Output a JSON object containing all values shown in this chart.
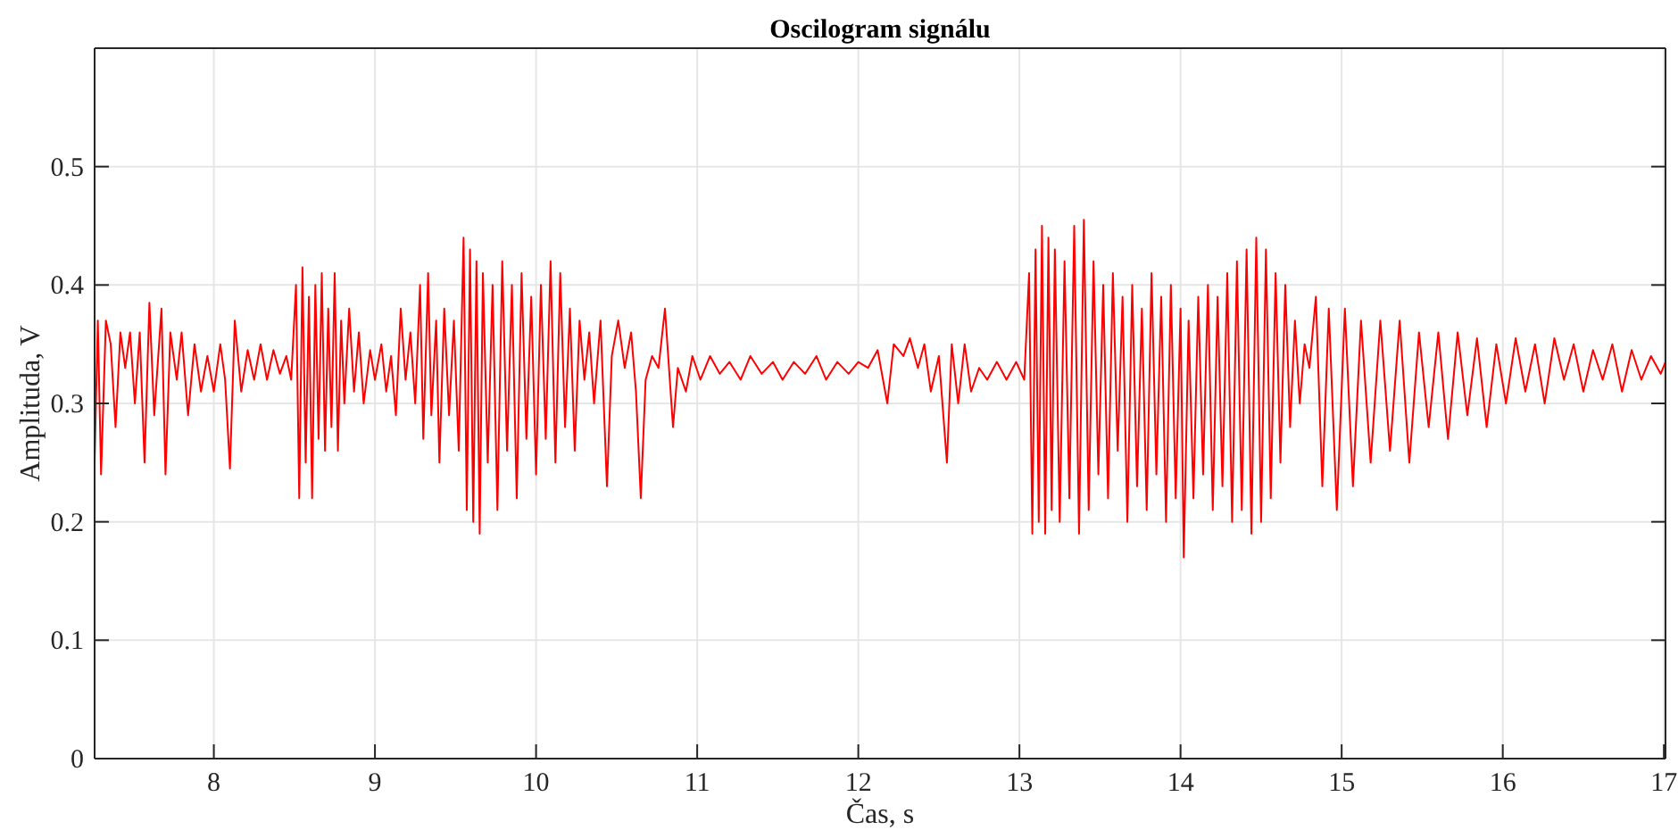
{
  "chart_data": {
    "type": "line",
    "title": "Oscilogram signálu",
    "xlabel": "Čas, s",
    "ylabel": "Amplituda, V",
    "xlim": [
      7.26,
      17.01
    ],
    "xticks": [
      8,
      9,
      10,
      11,
      12,
      13,
      14,
      15,
      16,
      17
    ],
    "ylim": [
      0,
      0.6
    ],
    "yticks": [
      0,
      0.1,
      0.2,
      0.3,
      0.4,
      0.5
    ],
    "grid": true,
    "series": [
      {
        "color": "#ff0000",
        "x": [
          7.26,
          7.28,
          7.3,
          7.33,
          7.36,
          7.39,
          7.42,
          7.45,
          7.48,
          7.51,
          7.54,
          7.57,
          7.6,
          7.63,
          7.675,
          7.7,
          7.73,
          7.77,
          7.8,
          7.84,
          7.88,
          7.92,
          7.96,
          8.0,
          8.04,
          8.07,
          8.1,
          8.13,
          8.17,
          8.21,
          8.25,
          8.29,
          8.33,
          8.37,
          8.41,
          8.45,
          8.48,
          8.51,
          8.53,
          8.55,
          8.57,
          8.59,
          8.61,
          8.63,
          8.65,
          8.67,
          8.69,
          8.71,
          8.73,
          8.75,
          8.77,
          8.79,
          8.81,
          8.84,
          8.87,
          8.9,
          8.93,
          8.97,
          9.0,
          9.04,
          9.07,
          9.1,
          9.13,
          9.16,
          9.19,
          9.22,
          9.25,
          9.28,
          9.3,
          9.33,
          9.35,
          9.38,
          9.4,
          9.43,
          9.46,
          9.49,
          9.52,
          9.55,
          9.57,
          9.59,
          9.61,
          9.63,
          9.65,
          9.67,
          9.7,
          9.73,
          9.76,
          9.79,
          9.82,
          9.85,
          9.88,
          9.91,
          9.94,
          9.97,
          10.0,
          10.03,
          10.06,
          10.09,
          10.12,
          10.15,
          10.18,
          10.21,
          10.24,
          10.27,
          10.3,
          10.33,
          10.36,
          10.4,
          10.44,
          10.47,
          10.51,
          10.55,
          10.59,
          10.62,
          10.65,
          10.68,
          10.72,
          10.76,
          10.8,
          10.85,
          10.88,
          10.93,
          10.97,
          11.02,
          11.08,
          11.14,
          11.2,
          11.27,
          11.33,
          11.4,
          11.47,
          11.53,
          11.6,
          11.67,
          11.74,
          11.8,
          11.87,
          11.94,
          12.0,
          12.06,
          12.12,
          12.18,
          12.22,
          12.28,
          12.32,
          12.37,
          12.41,
          12.45,
          12.5,
          12.55,
          12.58,
          12.62,
          12.66,
          12.7,
          12.75,
          12.8,
          12.86,
          12.92,
          12.98,
          13.03,
          13.06,
          13.08,
          13.1,
          13.12,
          13.14,
          13.16,
          13.18,
          13.2,
          13.22,
          13.25,
          13.28,
          13.31,
          13.34,
          13.37,
          13.4,
          13.43,
          13.46,
          13.49,
          13.52,
          13.55,
          13.58,
          13.61,
          13.64,
          13.67,
          13.7,
          13.73,
          13.76,
          13.79,
          13.82,
          13.85,
          13.88,
          13.91,
          13.94,
          13.97,
          14.0,
          14.02,
          14.05,
          14.08,
          14.11,
          14.14,
          14.17,
          14.2,
          14.23,
          14.26,
          14.29,
          14.32,
          14.35,
          14.38,
          14.41,
          14.44,
          14.47,
          14.5,
          14.53,
          14.56,
          14.59,
          14.62,
          14.65,
          14.68,
          14.71,
          14.74,
          14.77,
          14.8,
          14.84,
          14.88,
          14.92,
          14.97,
          15.02,
          15.07,
          15.12,
          15.18,
          15.24,
          15.3,
          15.36,
          15.42,
          15.48,
          15.54,
          15.6,
          15.66,
          15.72,
          15.78,
          15.84,
          15.9,
          15.96,
          16.02,
          16.08,
          16.14,
          16.2,
          16.26,
          16.32,
          16.38,
          16.44,
          16.5,
          16.56,
          16.62,
          16.68,
          16.74,
          16.8,
          16.86,
          16.92,
          16.98,
          17.01
        ],
        "values": [
          0.25,
          0.37,
          0.24,
          0.37,
          0.35,
          0.28,
          0.36,
          0.33,
          0.36,
          0.3,
          0.36,
          0.25,
          0.385,
          0.29,
          0.38,
          0.24,
          0.36,
          0.32,
          0.36,
          0.29,
          0.35,
          0.31,
          0.34,
          0.31,
          0.35,
          0.32,
          0.245,
          0.37,
          0.31,
          0.345,
          0.32,
          0.35,
          0.32,
          0.345,
          0.325,
          0.34,
          0.32,
          0.4,
          0.22,
          0.415,
          0.25,
          0.39,
          0.22,
          0.4,
          0.27,
          0.41,
          0.26,
          0.38,
          0.28,
          0.41,
          0.26,
          0.37,
          0.3,
          0.38,
          0.31,
          0.36,
          0.3,
          0.345,
          0.32,
          0.35,
          0.31,
          0.34,
          0.29,
          0.38,
          0.32,
          0.36,
          0.3,
          0.4,
          0.27,
          0.41,
          0.29,
          0.37,
          0.25,
          0.38,
          0.29,
          0.37,
          0.26,
          0.44,
          0.21,
          0.43,
          0.2,
          0.42,
          0.19,
          0.41,
          0.25,
          0.4,
          0.21,
          0.42,
          0.26,
          0.4,
          0.22,
          0.41,
          0.27,
          0.39,
          0.24,
          0.4,
          0.27,
          0.42,
          0.25,
          0.41,
          0.28,
          0.38,
          0.26,
          0.37,
          0.32,
          0.36,
          0.3,
          0.37,
          0.23,
          0.34,
          0.37,
          0.33,
          0.36,
          0.31,
          0.22,
          0.32,
          0.34,
          0.33,
          0.38,
          0.28,
          0.33,
          0.31,
          0.34,
          0.32,
          0.34,
          0.325,
          0.335,
          0.32,
          0.34,
          0.325,
          0.335,
          0.32,
          0.335,
          0.325,
          0.34,
          0.32,
          0.335,
          0.325,
          0.335,
          0.33,
          0.345,
          0.3,
          0.35,
          0.34,
          0.355,
          0.33,
          0.35,
          0.31,
          0.34,
          0.25,
          0.35,
          0.3,
          0.35,
          0.31,
          0.33,
          0.32,
          0.335,
          0.32,
          0.335,
          0.32,
          0.41,
          0.19,
          0.43,
          0.2,
          0.45,
          0.19,
          0.44,
          0.21,
          0.43,
          0.2,
          0.42,
          0.22,
          0.45,
          0.19,
          0.455,
          0.21,
          0.42,
          0.24,
          0.4,
          0.22,
          0.41,
          0.26,
          0.39,
          0.2,
          0.4,
          0.23,
          0.38,
          0.21,
          0.41,
          0.24,
          0.39,
          0.2,
          0.4,
          0.22,
          0.38,
          0.17,
          0.37,
          0.22,
          0.39,
          0.24,
          0.4,
          0.21,
          0.39,
          0.23,
          0.41,
          0.2,
          0.42,
          0.21,
          0.43,
          0.19,
          0.44,
          0.2,
          0.43,
          0.22,
          0.41,
          0.25,
          0.4,
          0.28,
          0.37,
          0.3,
          0.35,
          0.33,
          0.39,
          0.23,
          0.38,
          0.21,
          0.38,
          0.23,
          0.37,
          0.25,
          0.37,
          0.26,
          0.37,
          0.25,
          0.36,
          0.28,
          0.36,
          0.27,
          0.36,
          0.29,
          0.355,
          0.28,
          0.35,
          0.3,
          0.355,
          0.31,
          0.35,
          0.3,
          0.355,
          0.32,
          0.35,
          0.31,
          0.345,
          0.32,
          0.35,
          0.31,
          0.345,
          0.32,
          0.34,
          0.325,
          0.335
        ]
      }
    ]
  }
}
